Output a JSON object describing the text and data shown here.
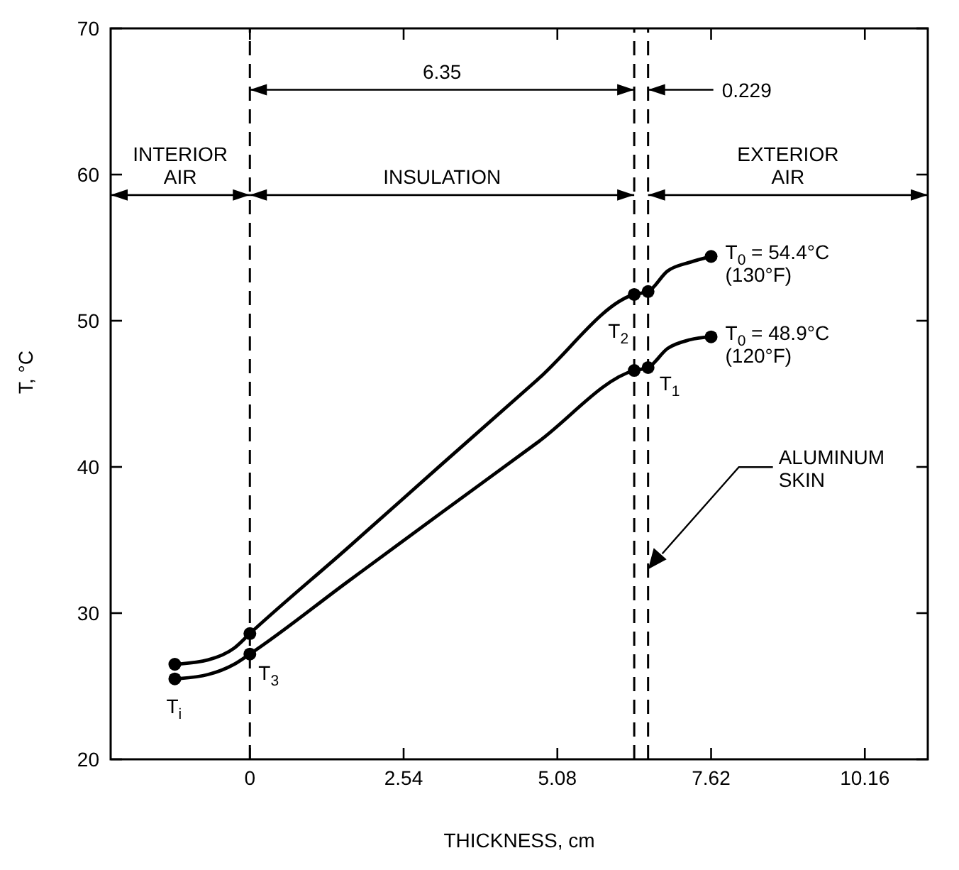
{
  "chart_data": {
    "type": "line",
    "xlabel": "THICKNESS, cm",
    "ylabel": "T, °C",
    "xlim": [
      -2.3,
      11.2
    ],
    "ylim": [
      20,
      70
    ],
    "xticks": [
      0,
      2.54,
      5.08,
      7.62,
      10.16
    ],
    "yticks": [
      20,
      30,
      40,
      50,
      60,
      70
    ],
    "grid": false,
    "marker": "none",
    "line_style": "solid",
    "series": [
      {
        "color": "#000000",
        "x": [
          -1.24,
          -0.69,
          -0.26,
          0,
          1.6,
          3.175,
          4.76,
          6.35,
          6.579,
          6.9,
          7.27,
          7.62
        ],
        "values": [
          26.5,
          26.8,
          27.6,
          28.6,
          34.4,
          40.2,
          46.0,
          51.8,
          52.0,
          53.4,
          54.0,
          54.4
        ]
      },
      {
        "color": "#000000",
        "x": [
          -1.24,
          -0.69,
          -0.26,
          0,
          1.6,
          3.175,
          4.76,
          6.35,
          6.579,
          6.9,
          7.27,
          7.62
        ],
        "values": [
          25.5,
          25.8,
          26.5,
          27.2,
          32.1,
          36.9,
          41.7,
          46.6,
          46.8,
          48.1,
          48.7,
          48.9
        ]
      },
      {
        "type": "scatter",
        "marker": "circle",
        "color": "#000000",
        "x": [
          -1.24,
          0,
          6.35,
          6.579,
          7.62,
          -1.24,
          0,
          6.35,
          6.579,
          7.62
        ],
        "values": [
          26.5,
          28.6,
          51.8,
          52.0,
          54.4,
          25.5,
          27.2,
          46.6,
          46.8,
          48.9
        ]
      }
    ],
    "ref_lines": [
      {
        "axis": "x",
        "value": 0,
        "line_style": "dashed"
      },
      {
        "axis": "x",
        "value": 6.35,
        "line_style": "dashed"
      },
      {
        "axis": "x",
        "value": 6.579,
        "line_style": "dashed"
      }
    ],
    "annotations": [
      "6.35",
      "0.229",
      "INTERIOR\nAIR",
      "INSULATION",
      "EXTERIOR\nAIR",
      {
        "text": "T$_{0}$ = 54.4°C\n(130°F)",
        "x": 7.62,
        "y": 54.4
      },
      {
        "text": "T$_{0}$ = 48.9°C\n(120°F)",
        "x": 7.62,
        "y": 48.9
      },
      {
        "text": "T$_{2}$",
        "x": 6.35,
        "y": 49.3
      },
      {
        "text": "T$_{1}$",
        "x": 6.579,
        "y": 46.8
      },
      {
        "text": "T$_{3}$",
        "x": 0,
        "y": 27.2
      },
      {
        "text": "T$_{i}$",
        "x": -1.24,
        "y": 25.5
      },
      "ALUMINUM\nSKIN"
    ]
  }
}
